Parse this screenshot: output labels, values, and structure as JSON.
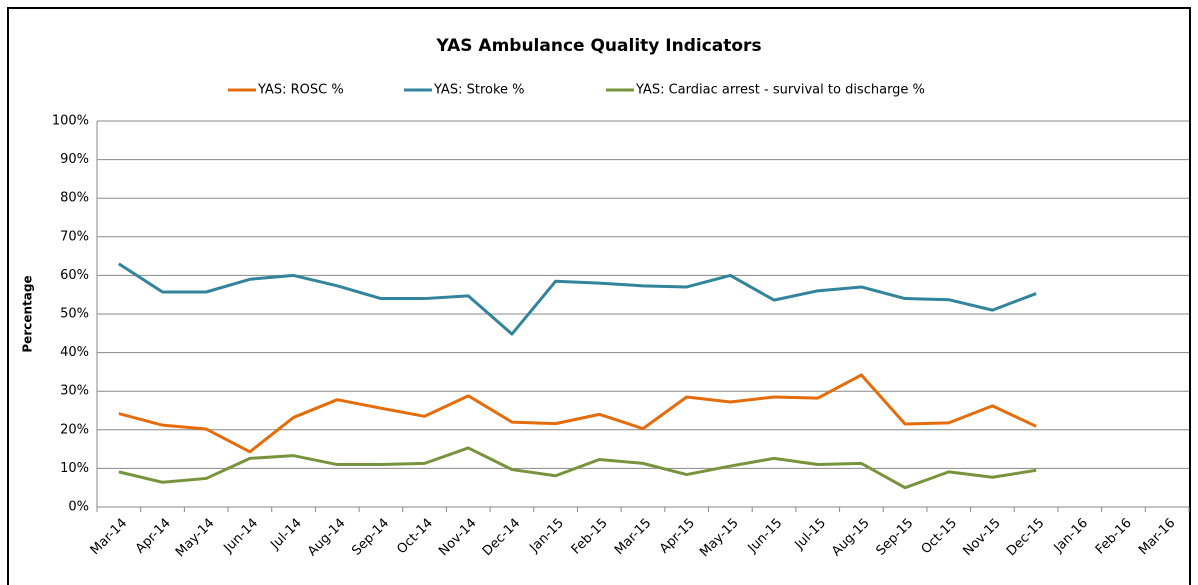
{
  "chart_data": {
    "type": "line",
    "title": "YAS Ambulance Quality Indicators",
    "y_label": "Percentage",
    "categories": [
      "Mar-14",
      "Apr-14",
      "May-14",
      "Jun-14",
      "Jul-14",
      "Aug-14",
      "Sep-14",
      "Oct-14",
      "Nov-14",
      "Dec-14",
      "Jan-15",
      "Feb-15",
      "Mar-15",
      "Apr-15",
      "May-15",
      "Jun-15",
      "Jul-15",
      "Aug-15",
      "Sep-15",
      "Oct-15",
      "Nov-15",
      "Dec-15",
      "Jan-16",
      "Feb-16",
      "Mar-16"
    ],
    "series": [
      {
        "name": "YAS: ROSC %",
        "color": "#e46c0a",
        "values": [
          24.2,
          21.2,
          20.2,
          14.3,
          23.2,
          27.8,
          25.6,
          23.5,
          28.8,
          22,
          21.6,
          24,
          20.3,
          28.5,
          27.2,
          28.5,
          28.2,
          34.2,
          21.5,
          21.8,
          26.2,
          20.9,
          null,
          null,
          null
        ]
      },
      {
        "name": "YAS: Stroke %",
        "color": "#31849b",
        "values": [
          63,
          55.7,
          55.7,
          59,
          60,
          57.3,
          54,
          54,
          54.7,
          44.8,
          58.5,
          58,
          57.3,
          57,
          60,
          53.6,
          56,
          57,
          54,
          53.7,
          51,
          55.3,
          null,
          null,
          null
        ]
      },
      {
        "name": "YAS: Cardiac arrest - survival to discharge %",
        "color": "#77933c",
        "values": [
          9.1,
          6.4,
          7.4,
          12.6,
          13.3,
          11,
          11,
          11.3,
          15.3,
          9.7,
          8.1,
          12.3,
          11.3,
          8.4,
          10.6,
          12.6,
          11,
          11.3,
          5,
          9.1,
          7.7,
          9.5,
          null,
          null,
          null
        ]
      }
    ],
    "ylim": [
      0,
      100
    ],
    "yticks": [
      {
        "value": 0,
        "label": "0%"
      },
      {
        "value": 10,
        "label": "10%"
      },
      {
        "value": 20,
        "label": "20%"
      },
      {
        "value": 30,
        "label": "30%"
      },
      {
        "value": 40,
        "label": "40%"
      },
      {
        "value": 50,
        "label": "50%"
      },
      {
        "value": 60,
        "label": "60%"
      },
      {
        "value": 70,
        "label": "70%"
      },
      {
        "value": 80,
        "label": "80%"
      },
      {
        "value": 90,
        "label": "90%"
      },
      {
        "value": 100,
        "label": "100%"
      }
    ],
    "grid": true,
    "legend": "top"
  }
}
